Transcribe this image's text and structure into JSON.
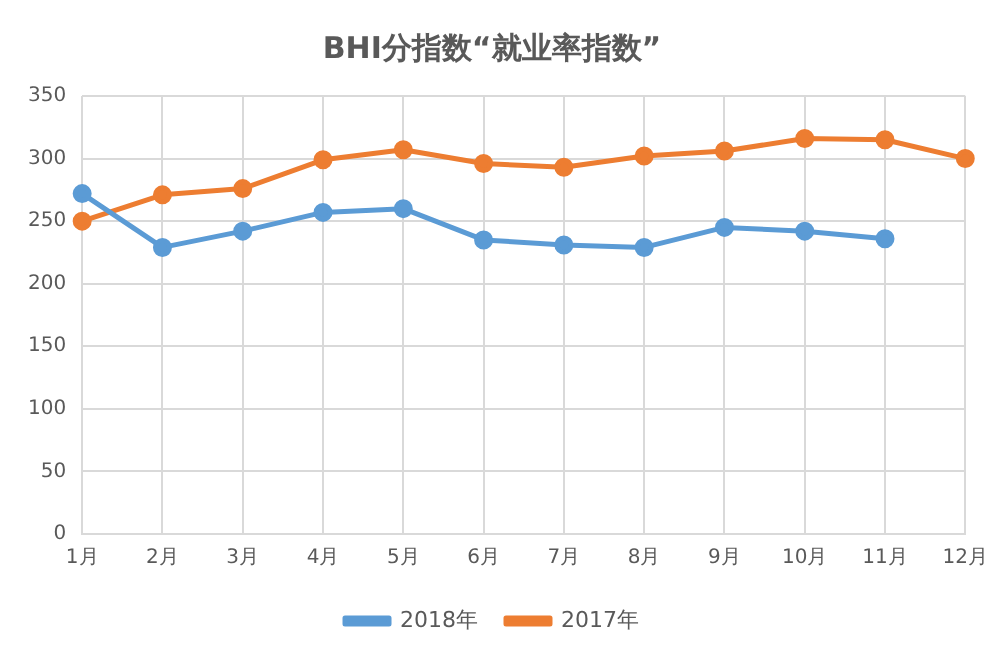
{
  "chart_data": {
    "type": "line",
    "title": "BHI分指数“就业率指数”",
    "categories": [
      "1月",
      "2月",
      "3月",
      "4月",
      "5月",
      "6月",
      "7月",
      "8月",
      "9月",
      "10月",
      "11月",
      "12月"
    ],
    "series": [
      {
        "name": "2018年",
        "color": "#5b9bd5",
        "values": [
          272,
          229,
          242,
          257,
          260,
          235,
          231,
          229,
          245,
          242,
          236,
          null
        ]
      },
      {
        "name": "2017年",
        "color": "#ed7d31",
        "values": [
          250,
          271,
          276,
          299,
          307,
          296,
          293,
          302,
          306,
          316,
          315,
          300
        ]
      }
    ],
    "ylim": [
      0,
      350
    ],
    "yticks": [
      0,
      50,
      100,
      150,
      200,
      250,
      300,
      350
    ],
    "grid": true,
    "legend": "bottom",
    "marker": "circle"
  }
}
